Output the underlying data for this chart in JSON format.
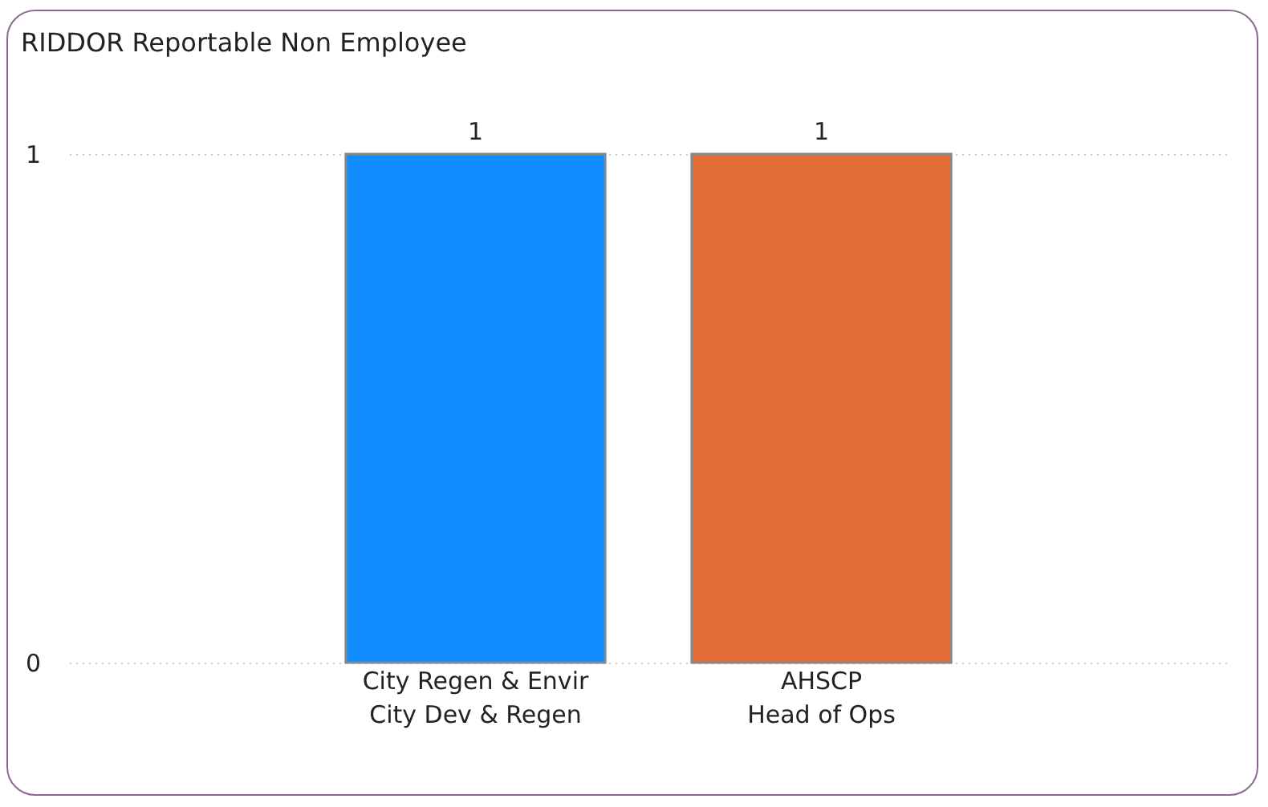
{
  "chart_data": {
    "type": "bar",
    "title": "RIDDOR Reportable Non Employee",
    "categories": [
      "City Regen & Envir\nCity Dev & Regen",
      "AHSCP\nHead of Ops"
    ],
    "values": [
      1,
      1
    ],
    "colors": [
      "#118dff",
      "#e46c37"
    ],
    "ylim": [
      0,
      1
    ],
    "yticks": [
      0,
      1
    ],
    "grid": "y",
    "data_labels": true
  }
}
